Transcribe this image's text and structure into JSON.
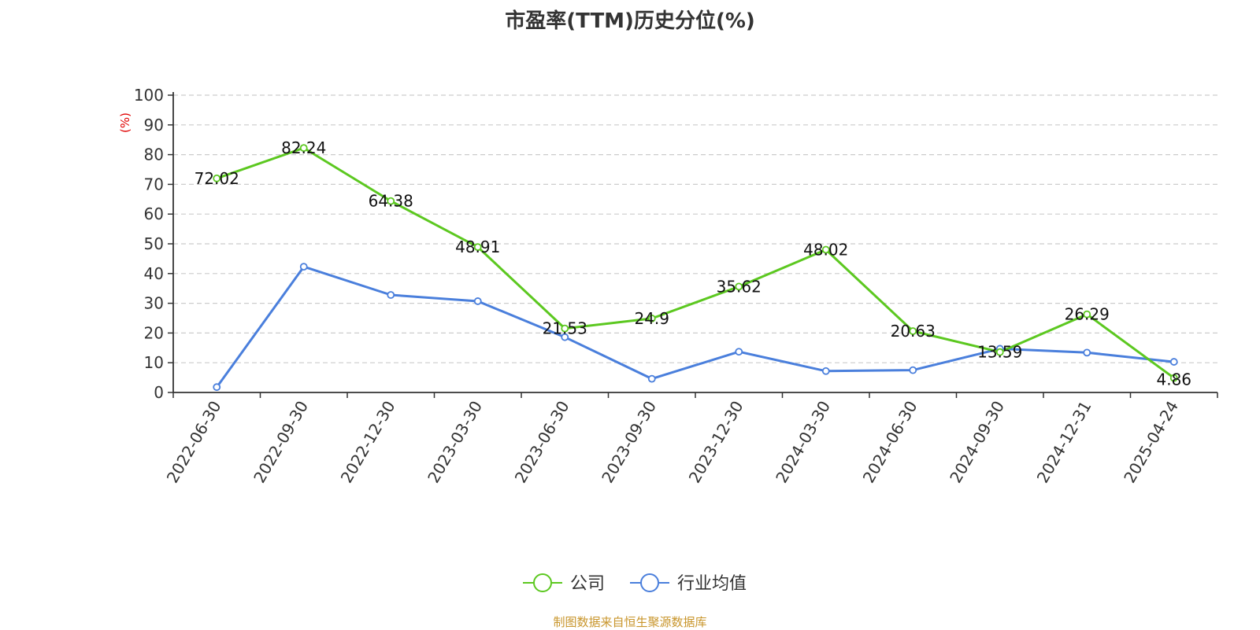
{
  "title": "市盈率(TTM)历史分位(%)",
  "source": "制图数据来自恒生聚源数据库",
  "chart_data": {
    "type": "line",
    "title": "市盈率(TTM)历史分位(%)",
    "ylabel": "(%)",
    "xlabel": "",
    "ylim": [
      0,
      100
    ],
    "yticks": [
      0,
      10,
      20,
      30,
      40,
      50,
      60,
      70,
      80,
      90,
      100
    ],
    "grid": true,
    "legend_position": "bottom-center",
    "categories": [
      "2022-06-30",
      "2022-09-30",
      "2022-12-30",
      "2023-03-30",
      "2023-06-30",
      "2023-09-30",
      "2023-12-30",
      "2024-03-30",
      "2024-06-30",
      "2024-09-30",
      "2024-12-31",
      "2025-04-24"
    ],
    "series": [
      {
        "name": "公司",
        "color": "#5cc820",
        "show_labels": true,
        "values": [
          72.02,
          82.24,
          64.38,
          48.91,
          21.53,
          24.9,
          35.62,
          48.02,
          20.63,
          13.59,
          26.29,
          4.86
        ]
      },
      {
        "name": "行业均值",
        "color": "#4a7fdc",
        "show_labels": false,
        "values": [
          1.8,
          42.3,
          32.8,
          30.7,
          18.6,
          4.6,
          13.7,
          7.2,
          7.5,
          14.7,
          13.4,
          10.3
        ]
      }
    ]
  }
}
